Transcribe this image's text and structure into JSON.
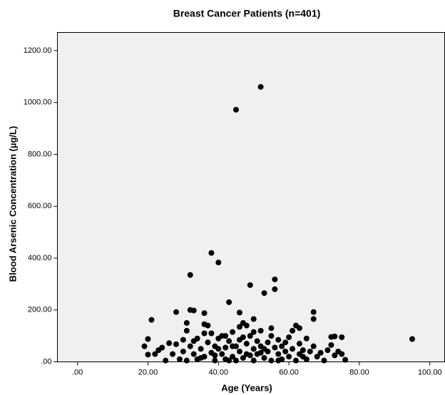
{
  "chart_data": {
    "type": "scatter",
    "title": "Breast Cancer Patients (n=401)",
    "x_label": "Age (Years)",
    "y_label": "Blood Arsenic Concentration (µg/L)",
    "x": [
      52,
      45,
      38,
      40,
      32,
      56,
      49,
      56,
      53,
      43,
      67,
      28,
      46,
      36,
      32,
      33,
      21,
      67,
      50,
      62,
      63,
      31,
      36,
      95,
      73,
      75,
      72,
      19,
      20,
      20,
      22,
      23,
      24,
      25,
      26,
      28,
      29,
      30,
      30,
      31,
      32,
      33,
      34,
      34,
      35,
      36,
      36,
      37,
      38,
      38,
      39,
      39,
      40,
      41,
      41,
      42,
      42,
      43,
      44,
      44,
      45,
      45,
      46,
      46,
      47,
      47,
      48,
      48,
      49,
      49,
      50,
      50,
      51,
      51,
      52,
      52,
      53,
      54,
      54,
      55,
      55,
      56,
      57,
      57,
      58,
      58,
      59,
      60,
      60,
      61,
      61,
      62,
      63,
      63,
      64,
      65,
      65,
      66,
      67,
      68,
      69,
      70,
      71,
      72,
      73,
      74,
      75,
      76,
      33,
      35,
      37,
      40,
      43,
      47,
      53,
      55,
      59,
      44,
      48,
      42,
      27,
      31,
      50,
      64,
      57,
      39,
      46,
      52
    ],
    "values": [
      1060,
      972,
      420,
      383,
      335,
      318,
      296,
      280,
      265,
      230,
      192,
      192,
      190,
      188,
      200,
      198,
      162,
      165,
      165,
      140,
      130,
      150,
      145,
      88,
      98,
      95,
      96,
      60,
      88,
      28,
      30,
      45,
      55,
      5,
      72,
      68,
      10,
      40,
      85,
      120,
      60,
      30,
      90,
      10,
      50,
      110,
      20,
      75,
      110,
      35,
      5,
      60,
      90,
      30,
      100,
      55,
      10,
      80,
      20,
      115,
      60,
      5,
      135,
      40,
      95,
      15,
      70,
      140,
      25,
      100,
      50,
      5,
      80,
      30,
      120,
      60,
      15,
      75,
      40,
      100,
      5,
      55,
      30,
      85,
      10,
      60,
      40,
      95,
      20,
      120,
      50,
      5,
      70,
      30,
      45,
      90,
      10,
      40,
      60,
      20,
      35,
      5,
      45,
      65,
      25,
      40,
      30,
      8,
      80,
      15,
      140,
      50,
      5,
      150,
      50,
      130,
      75,
      60,
      30,
      100,
      30,
      5,
      115,
      20,
      5,
      25,
      85,
      35
    ],
    "color": "#000000",
    "xlim": [
      -5.7,
      104.2
    ],
    "xticks": [
      {
        "value": 0,
        "label": ".00"
      },
      {
        "value": 20,
        "label": "20.00"
      },
      {
        "value": 40,
        "label": "40.00"
      },
      {
        "value": 60,
        "label": "60.00"
      },
      {
        "value": 80,
        "label": "80.00"
      },
      {
        "value": 100,
        "label": "100.00"
      }
    ],
    "ylim": [
      0,
      1270
    ],
    "yticks": [
      {
        "value": 0,
        "label": ".00"
      },
      {
        "value": 200,
        "label": "200.00"
      },
      {
        "value": 400,
        "label": "400.00"
      },
      {
        "value": 600,
        "label": "600.00"
      },
      {
        "value": 800,
        "label": "800.00"
      },
      {
        "value": 1000,
        "label": "1000.00"
      },
      {
        "value": 1200,
        "label": "1200.00"
      }
    ],
    "grid": false
  }
}
